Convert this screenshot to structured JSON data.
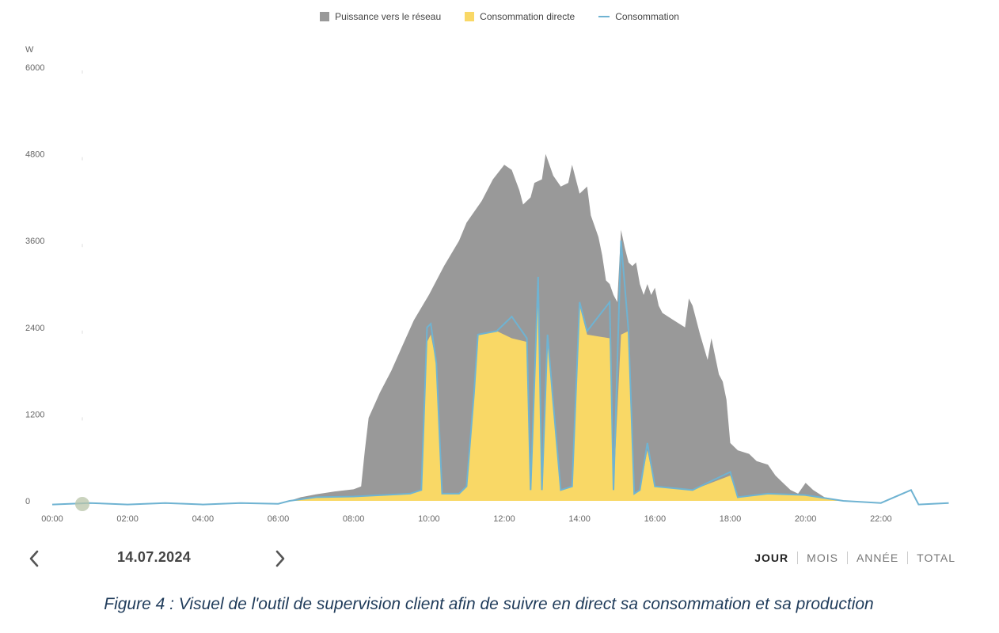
{
  "legend": {
    "grid": "Puissance vers le réseau",
    "direct": "Consommation directe",
    "consumption": "Consommation"
  },
  "colors": {
    "grid": "#999999",
    "direct": "#f9d866",
    "consumption": "#6fb3d2",
    "axis_text": "#666666"
  },
  "chart_data": {
    "type": "area",
    "unit": "W",
    "ylim": [
      0,
      6000
    ],
    "xlim": [
      0,
      24
    ],
    "y_ticks": [
      "0",
      "1200",
      "2400",
      "3600",
      "4800",
      "6000"
    ],
    "x_ticks": [
      "00:00",
      "02:00",
      "04:00",
      "06:00",
      "08:00",
      "10:00",
      "12:00",
      "14:00",
      "16:00",
      "18:00",
      "20:00",
      "22:00"
    ],
    "series": [
      {
        "name": "Puissance vers le réseau",
        "points": [
          [
            6.3,
            0
          ],
          [
            6.6,
            50
          ],
          [
            7.0,
            90
          ],
          [
            7.5,
            130
          ],
          [
            8.0,
            160
          ],
          [
            8.2,
            200
          ],
          [
            8.3,
            700
          ],
          [
            8.4,
            1150
          ],
          [
            8.7,
            1500
          ],
          [
            9.0,
            1800
          ],
          [
            9.3,
            2150
          ],
          [
            9.6,
            2500
          ],
          [
            10.0,
            2850
          ],
          [
            10.4,
            3250
          ],
          [
            10.8,
            3600
          ],
          [
            11.0,
            3850
          ],
          [
            11.4,
            4150
          ],
          [
            11.7,
            4450
          ],
          [
            12.0,
            4650
          ],
          [
            12.2,
            4580
          ],
          [
            12.4,
            4300
          ],
          [
            12.5,
            4100
          ],
          [
            12.7,
            4200
          ],
          [
            12.8,
            4400
          ],
          [
            13.0,
            4450
          ],
          [
            13.1,
            4800
          ],
          [
            13.3,
            4500
          ],
          [
            13.5,
            4350
          ],
          [
            13.7,
            4400
          ],
          [
            13.8,
            4650
          ],
          [
            14.0,
            4250
          ],
          [
            14.2,
            4350
          ],
          [
            14.3,
            3950
          ],
          [
            14.4,
            3800
          ],
          [
            14.5,
            3650
          ],
          [
            14.6,
            3400
          ],
          [
            14.7,
            3050
          ],
          [
            14.8,
            3000
          ],
          [
            14.9,
            2850
          ],
          [
            15.0,
            2750
          ],
          [
            15.1,
            3750
          ],
          [
            15.2,
            3500
          ],
          [
            15.3,
            3300
          ],
          [
            15.4,
            3250
          ],
          [
            15.5,
            3300
          ],
          [
            15.6,
            3000
          ],
          [
            15.7,
            2850
          ],
          [
            15.8,
            3000
          ],
          [
            15.9,
            2850
          ],
          [
            16.0,
            2950
          ],
          [
            16.1,
            2700
          ],
          [
            16.2,
            2600
          ],
          [
            16.5,
            2500
          ],
          [
            16.8,
            2400
          ],
          [
            16.9,
            2800
          ],
          [
            17.0,
            2700
          ],
          [
            17.2,
            2300
          ],
          [
            17.4,
            1950
          ],
          [
            17.5,
            2250
          ],
          [
            17.7,
            1750
          ],
          [
            17.8,
            1650
          ],
          [
            17.9,
            1400
          ],
          [
            18.0,
            800
          ],
          [
            18.2,
            700
          ],
          [
            18.5,
            650
          ],
          [
            18.7,
            550
          ],
          [
            19.0,
            500
          ],
          [
            19.2,
            350
          ],
          [
            19.4,
            250
          ],
          [
            19.6,
            150
          ],
          [
            19.8,
            100
          ],
          [
            20.0,
            250
          ],
          [
            20.2,
            150
          ],
          [
            20.5,
            50
          ],
          [
            20.8,
            20
          ],
          [
            21.0,
            0
          ]
        ]
      },
      {
        "name": "Consommation directe",
        "points": [
          [
            6.3,
            0
          ],
          [
            7.0,
            50
          ],
          [
            8.0,
            60
          ],
          [
            9.5,
            100
          ],
          [
            9.8,
            150
          ],
          [
            9.95,
            2200
          ],
          [
            10.05,
            2300
          ],
          [
            10.2,
            1900
          ],
          [
            10.35,
            100
          ],
          [
            10.8,
            100
          ],
          [
            11.0,
            200
          ],
          [
            11.2,
            1500
          ],
          [
            11.3,
            2300
          ],
          [
            11.8,
            2350
          ],
          [
            12.2,
            2250
          ],
          [
            12.6,
            2200
          ],
          [
            12.7,
            150
          ],
          [
            12.9,
            2950
          ],
          [
            13.0,
            150
          ],
          [
            13.15,
            2200
          ],
          [
            13.3,
            1350
          ],
          [
            13.5,
            150
          ],
          [
            13.8,
            200
          ],
          [
            14.0,
            2700
          ],
          [
            14.2,
            2300
          ],
          [
            14.8,
            2250
          ],
          [
            14.9,
            150
          ],
          [
            15.1,
            2300
          ],
          [
            15.3,
            2350
          ],
          [
            15.45,
            100
          ],
          [
            15.6,
            150
          ],
          [
            15.8,
            700
          ],
          [
            16.0,
            200
          ],
          [
            17.0,
            150
          ],
          [
            18.0,
            350
          ],
          [
            18.2,
            50
          ],
          [
            19.0,
            100
          ],
          [
            20.0,
            80
          ],
          [
            21.0,
            0
          ]
        ]
      },
      {
        "name": "Consommation",
        "points": [
          [
            0,
            -50
          ],
          [
            1.0,
            -30
          ],
          [
            2.0,
            -50
          ],
          [
            3.0,
            -30
          ],
          [
            4.0,
            -50
          ],
          [
            5.0,
            -30
          ],
          [
            6.0,
            -40
          ],
          [
            6.3,
            0
          ],
          [
            7.0,
            50
          ],
          [
            8.0,
            60
          ],
          [
            9.5,
            100
          ],
          [
            9.8,
            150
          ],
          [
            9.95,
            2400
          ],
          [
            10.05,
            2450
          ],
          [
            10.2,
            1900
          ],
          [
            10.35,
            100
          ],
          [
            10.8,
            100
          ],
          [
            11.0,
            200
          ],
          [
            11.2,
            1500
          ],
          [
            11.3,
            2300
          ],
          [
            11.8,
            2350
          ],
          [
            12.2,
            2550
          ],
          [
            12.6,
            2250
          ],
          [
            12.7,
            150
          ],
          [
            12.9,
            3100
          ],
          [
            13.0,
            150
          ],
          [
            13.15,
            2300
          ],
          [
            13.3,
            1350
          ],
          [
            13.5,
            150
          ],
          [
            13.8,
            200
          ],
          [
            14.0,
            2750
          ],
          [
            14.2,
            2350
          ],
          [
            14.8,
            2750
          ],
          [
            14.9,
            150
          ],
          [
            15.1,
            3600
          ],
          [
            15.3,
            2350
          ],
          [
            15.45,
            100
          ],
          [
            15.6,
            150
          ],
          [
            15.8,
            800
          ],
          [
            16.0,
            200
          ],
          [
            17.0,
            150
          ],
          [
            18.0,
            400
          ],
          [
            18.2,
            50
          ],
          [
            19.0,
            100
          ],
          [
            20.0,
            80
          ],
          [
            21.0,
            0
          ],
          [
            22.0,
            -30
          ],
          [
            22.8,
            150
          ],
          [
            23.0,
            -50
          ],
          [
            23.8,
            -30
          ]
        ]
      }
    ]
  },
  "nav": {
    "date": "14.07.2024",
    "tabs": [
      "JOUR",
      "MOIS",
      "ANNÉE",
      "TOTAL"
    ],
    "active_tab": "JOUR"
  },
  "caption": "Figure 4 : Visuel de l'outil de supervision client afin de suivre en direct sa consommation et sa production"
}
